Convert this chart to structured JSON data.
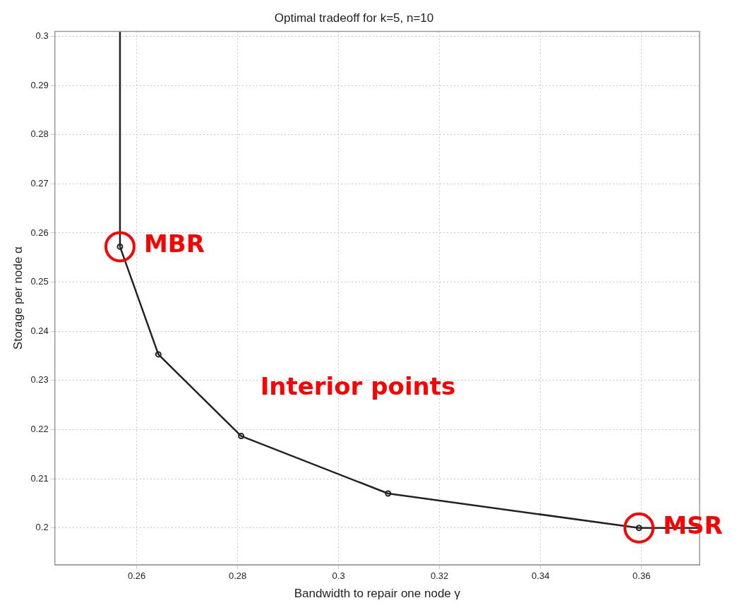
{
  "chart_data": {
    "type": "line",
    "title": "Optimal tradeoff for k=5, n=10",
    "xlabel": "Bandwidth to repair one node γ",
    "ylabel": "Storage per node α",
    "series": [
      {
        "color": "#222222",
        "marker": "none",
        "x": [
          0.2567,
          0.2567,
          0.2643,
          0.2807,
          0.3098,
          0.3595,
          0.3715
        ],
        "values": [
          0.301,
          0.2572,
          0.2353,
          0.2187,
          0.207,
          0.2,
          0.2
        ]
      },
      {
        "type": "scatter",
        "color": "#222222",
        "marker": "circle",
        "x": [
          0.2567,
          0.2643,
          0.2807,
          0.3098,
          0.3595
        ],
        "values": [
          0.2572,
          0.2353,
          0.2187,
          0.207,
          0.2
        ]
      }
    ],
    "xlim": [
      0.2438,
      0.3715
    ],
    "ylim": [
      0.1925,
      0.301
    ],
    "xticks": [
      0.26,
      0.28,
      0.3,
      0.32,
      0.34,
      0.36
    ],
    "yticks": [
      0.2,
      0.21,
      0.22,
      0.23,
      0.24,
      0.25,
      0.26,
      0.27,
      0.28,
      0.29,
      0.3
    ],
    "grid": true,
    "legend": false,
    "annotations": [
      {
        "text": "MBR",
        "x": 0.2567,
        "y": 0.2572
      },
      "Interior points",
      {
        "text": "MSR",
        "x": 0.3595,
        "y": 0.2
      }
    ]
  }
}
